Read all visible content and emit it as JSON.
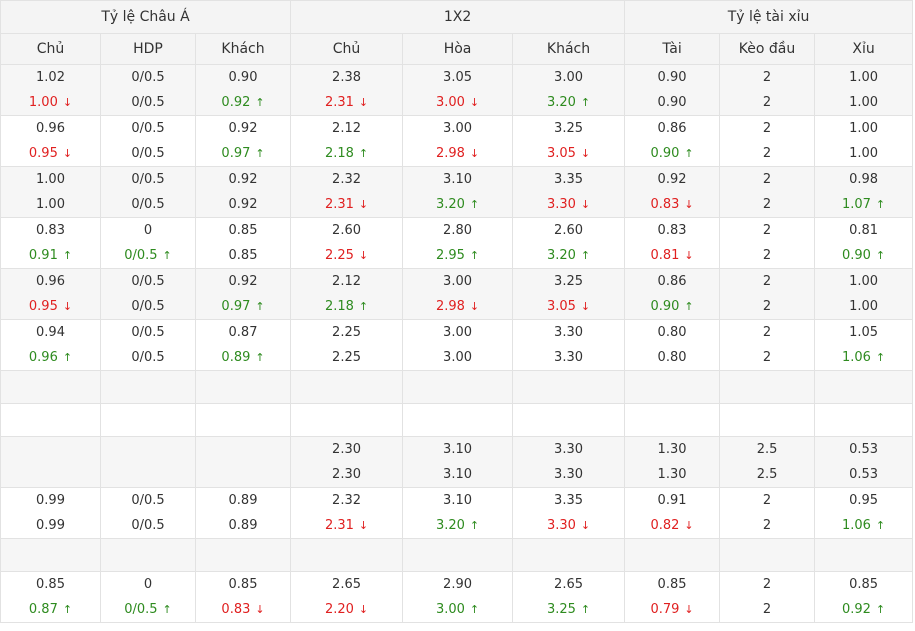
{
  "groups": [
    {
      "label": "Tỷ lệ Châu Á"
    },
    {
      "label": "1X2"
    },
    {
      "label": "Tỷ lệ tài xỉu"
    }
  ],
  "columns": [
    "Chủ",
    "HDP",
    "Khách",
    "Chủ",
    "Hòa",
    "Khách",
    "Tài",
    "Kèo đầu",
    "Xỉu"
  ],
  "arrows": {
    "up": "↑",
    "down": "↓"
  },
  "colors": {
    "up": "#2e8b1f",
    "down": "#e02020",
    "header_bg": "#f4f4f4",
    "stripe_bg": "#f6f6f6",
    "border": "#e2e2e2"
  },
  "rows": [
    {
      "cells": [
        [
          "1.02",
          [
            "1.00",
            "down"
          ]
        ],
        [
          "0/0.5",
          [
            "0/0.5",
            ""
          ]
        ],
        [
          "0.90",
          [
            "0.92",
            "up"
          ]
        ],
        [
          "2.38",
          [
            "2.31",
            "down"
          ]
        ],
        [
          "3.05",
          [
            "3.00",
            "down"
          ]
        ],
        [
          "3.00",
          [
            "3.20",
            "up"
          ]
        ],
        [
          "0.90",
          [
            "0.90",
            ""
          ]
        ],
        [
          "2",
          [
            "2",
            ""
          ]
        ],
        [
          "1.00",
          [
            "1.00",
            ""
          ]
        ]
      ]
    },
    {
      "cells": [
        [
          "0.96",
          [
            "0.95",
            "down"
          ]
        ],
        [
          "0/0.5",
          [
            "0/0.5",
            ""
          ]
        ],
        [
          "0.92",
          [
            "0.97",
            "up"
          ]
        ],
        [
          "2.12",
          [
            "2.18",
            "up"
          ]
        ],
        [
          "3.00",
          [
            "2.98",
            "down"
          ]
        ],
        [
          "3.25",
          [
            "3.05",
            "down"
          ]
        ],
        [
          "0.86",
          [
            "0.90",
            "up"
          ]
        ],
        [
          "2",
          [
            "2",
            ""
          ]
        ],
        [
          "1.00",
          [
            "1.00",
            ""
          ]
        ]
      ]
    },
    {
      "cells": [
        [
          "1.00",
          [
            "1.00",
            ""
          ]
        ],
        [
          "0/0.5",
          [
            "0/0.5",
            ""
          ]
        ],
        [
          "0.92",
          [
            "0.92",
            ""
          ]
        ],
        [
          "2.32",
          [
            "2.31",
            "down"
          ]
        ],
        [
          "3.10",
          [
            "3.20",
            "up"
          ]
        ],
        [
          "3.35",
          [
            "3.30",
            "down"
          ]
        ],
        [
          "0.92",
          [
            "0.83",
            "down"
          ]
        ],
        [
          "2",
          [
            "2",
            ""
          ]
        ],
        [
          "0.98",
          [
            "1.07",
            "up"
          ]
        ]
      ]
    },
    {
      "cells": [
        [
          "0.83",
          [
            "0.91",
            "up"
          ]
        ],
        [
          "0",
          [
            "0/0.5",
            "up"
          ]
        ],
        [
          "0.85",
          [
            "0.85",
            ""
          ]
        ],
        [
          "2.60",
          [
            "2.25",
            "down"
          ]
        ],
        [
          "2.80",
          [
            "2.95",
            "up"
          ]
        ],
        [
          "2.60",
          [
            "3.20",
            "up"
          ]
        ],
        [
          "0.83",
          [
            "0.81",
            "down"
          ]
        ],
        [
          "2",
          [
            "2",
            ""
          ]
        ],
        [
          "0.81",
          [
            "0.90",
            "up"
          ]
        ]
      ]
    },
    {
      "cells": [
        [
          "0.96",
          [
            "0.95",
            "down"
          ]
        ],
        [
          "0/0.5",
          [
            "0/0.5",
            ""
          ]
        ],
        [
          "0.92",
          [
            "0.97",
            "up"
          ]
        ],
        [
          "2.12",
          [
            "2.18",
            "up"
          ]
        ],
        [
          "3.00",
          [
            "2.98",
            "down"
          ]
        ],
        [
          "3.25",
          [
            "3.05",
            "down"
          ]
        ],
        [
          "0.86",
          [
            "0.90",
            "up"
          ]
        ],
        [
          "2",
          [
            "2",
            ""
          ]
        ],
        [
          "1.00",
          [
            "1.00",
            ""
          ]
        ]
      ]
    },
    {
      "cells": [
        [
          "0.94",
          [
            "0.96",
            "up"
          ]
        ],
        [
          "0/0.5",
          [
            "0/0.5",
            ""
          ]
        ],
        [
          "0.87",
          [
            "0.89",
            "up"
          ]
        ],
        [
          "2.25",
          [
            "2.25",
            ""
          ]
        ],
        [
          "3.00",
          [
            "3.00",
            ""
          ]
        ],
        [
          "3.30",
          [
            "3.30",
            ""
          ]
        ],
        [
          "0.80",
          [
            "0.80",
            ""
          ]
        ],
        [
          "2",
          [
            "2",
            ""
          ]
        ],
        [
          "1.05",
          [
            "1.06",
            "up"
          ]
        ]
      ]
    },
    {
      "empty": true
    },
    {
      "empty": true
    },
    {
      "cells": [
        null,
        null,
        null,
        [
          "2.30",
          [
            "2.30",
            ""
          ]
        ],
        [
          "3.10",
          [
            "3.10",
            ""
          ]
        ],
        [
          "3.30",
          [
            "3.30",
            ""
          ]
        ],
        [
          "1.30",
          [
            "1.30",
            ""
          ]
        ],
        [
          "2.5",
          [
            "2.5",
            ""
          ]
        ],
        [
          "0.53",
          [
            "0.53",
            ""
          ]
        ]
      ]
    },
    {
      "cells": [
        [
          "0.99",
          [
            "0.99",
            ""
          ]
        ],
        [
          "0/0.5",
          [
            "0/0.5",
            ""
          ]
        ],
        [
          "0.89",
          [
            "0.89",
            ""
          ]
        ],
        [
          "2.32",
          [
            "2.31",
            "down"
          ]
        ],
        [
          "3.10",
          [
            "3.20",
            "up"
          ]
        ],
        [
          "3.35",
          [
            "3.30",
            "down"
          ]
        ],
        [
          "0.91",
          [
            "0.82",
            "down"
          ]
        ],
        [
          "2",
          [
            "2",
            ""
          ]
        ],
        [
          "0.95",
          [
            "1.06",
            "up"
          ]
        ]
      ]
    },
    {
      "empty": true
    },
    {
      "cells": [
        [
          "0.85",
          [
            "0.87",
            "up"
          ]
        ],
        [
          "0",
          [
            "0/0.5",
            "up"
          ]
        ],
        [
          "0.85",
          [
            "0.83",
            "down"
          ]
        ],
        [
          "2.65",
          [
            "2.20",
            "down"
          ]
        ],
        [
          "2.90",
          [
            "3.00",
            "up"
          ]
        ],
        [
          "2.65",
          [
            "3.25",
            "up"
          ]
        ],
        [
          "0.85",
          [
            "0.79",
            "down"
          ]
        ],
        [
          "2",
          [
            "2",
            ""
          ]
        ],
        [
          "0.85",
          [
            "0.92",
            "up"
          ]
        ]
      ]
    }
  ]
}
